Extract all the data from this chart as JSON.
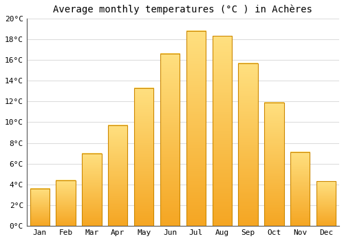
{
  "title": "Average monthly temperatures (°C ) in Achères",
  "months": [
    "Jan",
    "Feb",
    "Mar",
    "Apr",
    "May",
    "Jun",
    "Jul",
    "Aug",
    "Sep",
    "Oct",
    "Nov",
    "Dec"
  ],
  "values": [
    3.6,
    4.4,
    7.0,
    9.7,
    13.3,
    16.6,
    18.8,
    18.3,
    15.7,
    11.9,
    7.1,
    4.3
  ],
  "bar_color_bottom": "#F5A623",
  "bar_color_top": "#FFD966",
  "background_color": "#ffffff",
  "grid_color": "#dddddd",
  "ylim": [
    0,
    20
  ],
  "yticks": [
    0,
    2,
    4,
    6,
    8,
    10,
    12,
    14,
    16,
    18,
    20
  ],
  "title_fontsize": 10,
  "tick_fontsize": 8,
  "font_family": "monospace"
}
